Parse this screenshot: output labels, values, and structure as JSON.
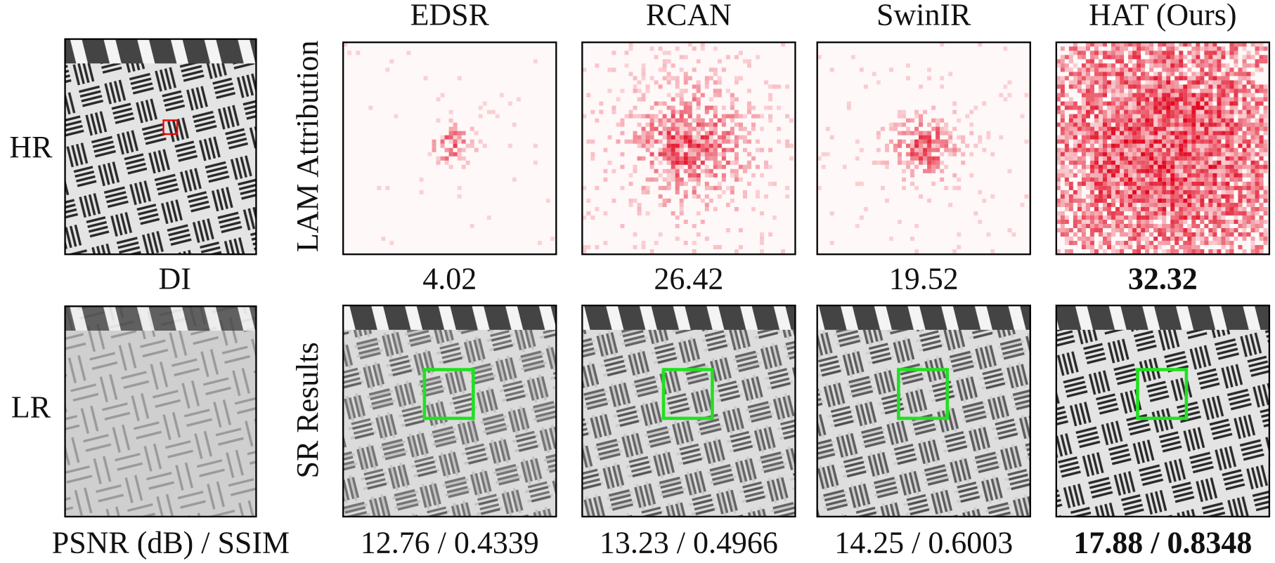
{
  "row_labels": {
    "top": "HR",
    "bottom": "LR"
  },
  "side_labels": {
    "top": "LAM Attribution",
    "bottom": "SR Results"
  },
  "di_label": "DI",
  "metric_label": "PSNR (dB) / SSIM",
  "methods": [
    {
      "name": "EDSR",
      "di": 4.02,
      "psnr_ssim": "12.76 / 0.4339"
    },
    {
      "name": "RCAN",
      "di": 26.42,
      "psnr_ssim": "13.23 / 0.4966"
    },
    {
      "name": "SwinIR",
      "di": 19.52,
      "psnr_ssim": "14.25 / 0.6003"
    },
    {
      "name": "HAT (Ours)",
      "di": 32.32,
      "psnr_ssim": "17.88 / 0.8348"
    }
  ]
}
